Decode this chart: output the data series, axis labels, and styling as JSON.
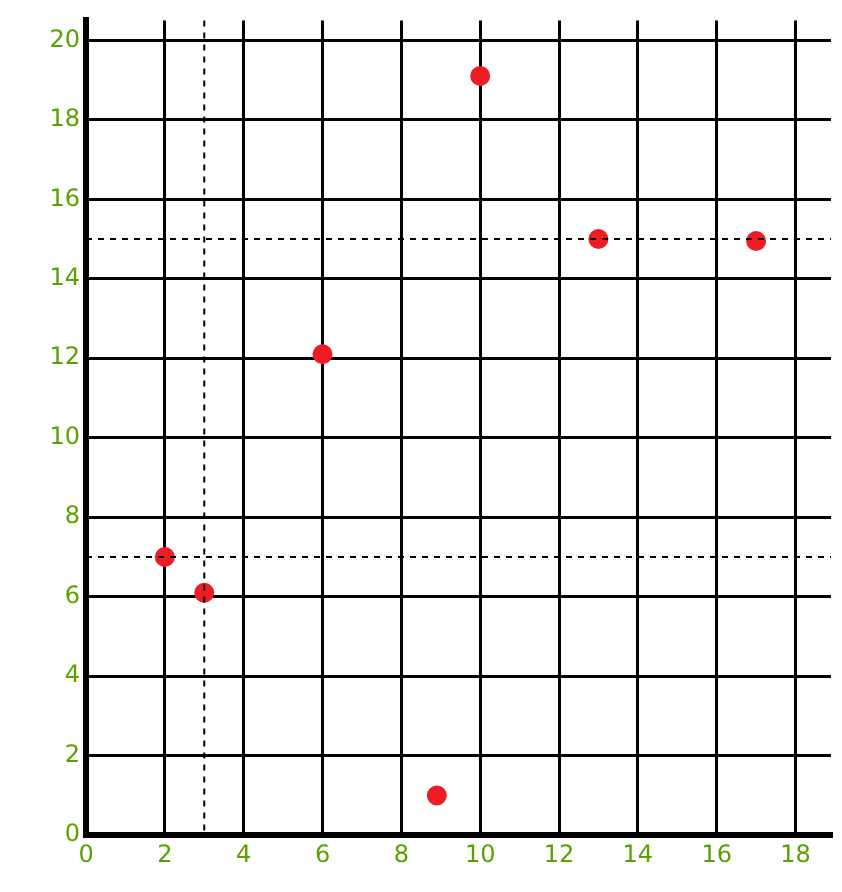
{
  "chart_data": {
    "type": "scatter",
    "x": [
      2,
      3,
      6,
      8.9,
      10,
      13,
      17
    ],
    "series": [
      {
        "color": "#ee1c24",
        "values": [
          7,
          6.1,
          12.1,
          1,
          19.1,
          15,
          14.95
        ]
      }
    ],
    "xlim": [
      0,
      18.9
    ],
    "ylim": [
      0,
      20.5
    ],
    "xticks": [
      0,
      2,
      4,
      6,
      8,
      10,
      12,
      14,
      16,
      18
    ],
    "yticks": [
      0,
      2,
      4,
      6,
      8,
      10,
      12,
      14,
      16,
      18,
      20
    ],
    "grid": true,
    "marker": "circle",
    "ref_lines": [
      {
        "axis": "x",
        "value": 3,
        "color": "#000000",
        "line_style": "dashed"
      },
      {
        "axis": "y",
        "value": 7,
        "color": "#000000",
        "line_style": "dashed"
      },
      {
        "axis": "y",
        "value": 15,
        "color": "#000000",
        "line_style": "dashed"
      }
    ]
  }
}
